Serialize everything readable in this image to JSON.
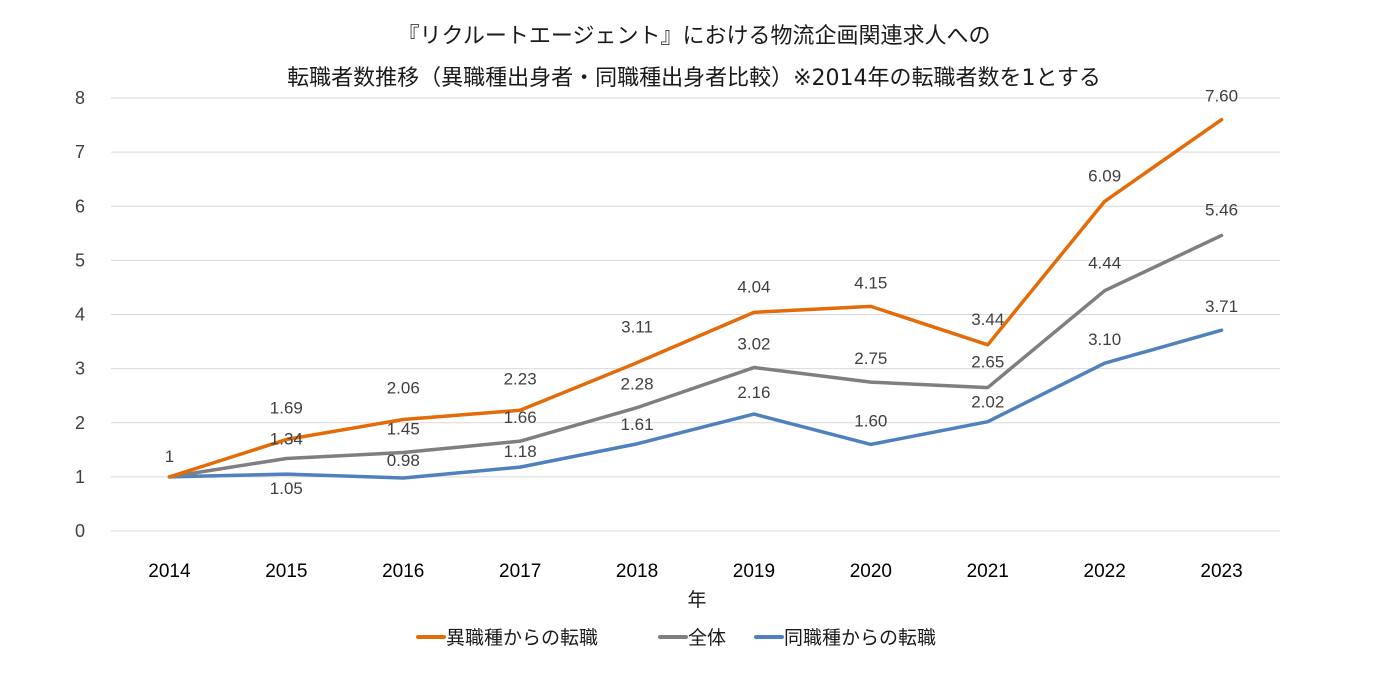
{
  "chart_data": {
    "type": "line",
    "title_line1": "『リクルートエージェント』における物流企画関連求人への",
    "title_line2": "転職者数推移（異職種出身者・同職種出身者比較）※2014年の転職者数を1とする",
    "xlabel": "年",
    "ylabel": "",
    "x": [
      "2014",
      "2015",
      "2016",
      "2017",
      "2018",
      "2019",
      "2020",
      "2021",
      "2022",
      "2023"
    ],
    "ylim": [
      0,
      8
    ],
    "yticks": [
      "0",
      "1",
      "2",
      "3",
      "4",
      "5",
      "6",
      "7",
      "8"
    ],
    "grid": true,
    "legend_position": "bottom",
    "series": [
      {
        "name": "異職種からの転職",
        "color": "#E36C09",
        "values": [
          1,
          1.69,
          2.06,
          2.23,
          3.11,
          4.04,
          4.15,
          3.44,
          6.09,
          7.6
        ],
        "labels": [
          "1",
          "1.69",
          "2.06",
          "2.23",
          "3.11",
          "4.04",
          "4.15",
          "3.44",
          "6.09",
          "7.60"
        ]
      },
      {
        "name": "全体",
        "color": "#7F7F7F",
        "values": [
          1,
          1.34,
          1.45,
          1.66,
          2.28,
          3.02,
          2.75,
          2.65,
          4.44,
          5.46
        ],
        "labels": [
          "",
          "1.34",
          "1.45",
          "1.66",
          "2.28",
          "3.02",
          "2.75",
          "2.65",
          "4.44",
          "5.46"
        ]
      },
      {
        "name": "同職種からの転職",
        "color": "#4F81BD",
        "values": [
          1,
          1.05,
          0.98,
          1.18,
          1.61,
          2.16,
          1.6,
          2.02,
          3.1,
          3.71
        ],
        "labels": [
          "",
          "1.05",
          "0.98",
          "1.18",
          "1.61",
          "2.16",
          "1.60",
          "2.02",
          "3.10",
          "3.71"
        ]
      }
    ]
  }
}
